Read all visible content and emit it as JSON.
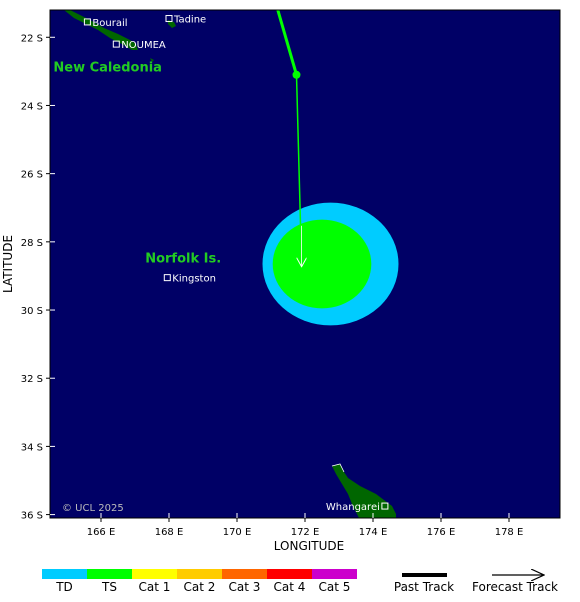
{
  "axes": {
    "xlabel": "LONGITUDE",
    "ylabel": "LATITUDE",
    "lon_range": [
      164.5,
      179.5
    ],
    "lat_range": [
      -36.1,
      -21.2
    ],
    "lon_ticks": [
      {
        "value": 166,
        "label": "166 E"
      },
      {
        "value": 168,
        "label": "168 E"
      },
      {
        "value": 170,
        "label": "170 E"
      },
      {
        "value": 172,
        "label": "172 E"
      },
      {
        "value": 174,
        "label": "174 E"
      },
      {
        "value": 176,
        "label": "176 E"
      },
      {
        "value": 178,
        "label": "178 E"
      }
    ],
    "lat_ticks": [
      {
        "value": -22,
        "label": "22 S"
      },
      {
        "value": -24,
        "label": "24 S"
      },
      {
        "value": -26,
        "label": "26 S"
      },
      {
        "value": -28,
        "label": "28 S"
      },
      {
        "value": -30,
        "label": "30 S"
      },
      {
        "value": -32,
        "label": "32 S"
      },
      {
        "value": -34,
        "label": "34 S"
      },
      {
        "value": -36,
        "label": "36 S"
      }
    ]
  },
  "regions": [
    {
      "name": "New Caledonia",
      "lon": 164.6,
      "lat": -23.0
    },
    {
      "name": "Norfolk Is.",
      "lon": 167.3,
      "lat": -28.6
    }
  ],
  "places": [
    {
      "name": "Bourail",
      "lon": 165.6,
      "lat": -21.55
    },
    {
      "name": "Tadine",
      "lon": 168.0,
      "lat": -21.45
    },
    {
      "name": "NOUMEA",
      "lon": 166.45,
      "lat": -22.2
    },
    {
      "name": "Kingston",
      "lon": 167.95,
      "lat": -29.05
    },
    {
      "name": "Whangarei",
      "lon": 174.35,
      "lat": -35.75
    }
  ],
  "storm": {
    "past_track": [
      {
        "lon": 171.2,
        "lat": -21.2
      },
      {
        "lon": 171.75,
        "lat": -23.1
      }
    ],
    "forecast_track": [
      {
        "lon": 171.75,
        "lat": -23.1
      },
      {
        "lon": 171.9,
        "lat": -28.7
      }
    ],
    "wind_extent": {
      "td": {
        "lon": 172.75,
        "lat": -28.65,
        "r_lon": 2.0,
        "r_lat": 1.8
      },
      "ts": {
        "lon": 172.5,
        "lat": -28.65,
        "r_lon": 1.45,
        "r_lat": 1.3
      }
    }
  },
  "colors": {
    "ocean": "#000066",
    "land": "#006600",
    "td": "#00ccff",
    "ts": "#00ff00",
    "cat1": "#ffff00",
    "cat2": "#ffcc00",
    "cat3": "#ff6600",
    "cat4": "#ff0000",
    "cat5": "#cc00cc"
  },
  "copyright": "© UCL 2025",
  "legend": {
    "categories": [
      {
        "label": "TD",
        "color": "#00ccff"
      },
      {
        "label": "TS",
        "color": "#00ff00"
      },
      {
        "label": "Cat 1",
        "color": "#ffff00"
      },
      {
        "label": "Cat 2",
        "color": "#ffcc00"
      },
      {
        "label": "Cat 3",
        "color": "#ff6600"
      },
      {
        "label": "Cat 4",
        "color": "#ff0000"
      },
      {
        "label": "Cat 5",
        "color": "#cc00cc"
      }
    ],
    "past_track_label": "Past Track",
    "forecast_track_label": "Forecast Track"
  }
}
